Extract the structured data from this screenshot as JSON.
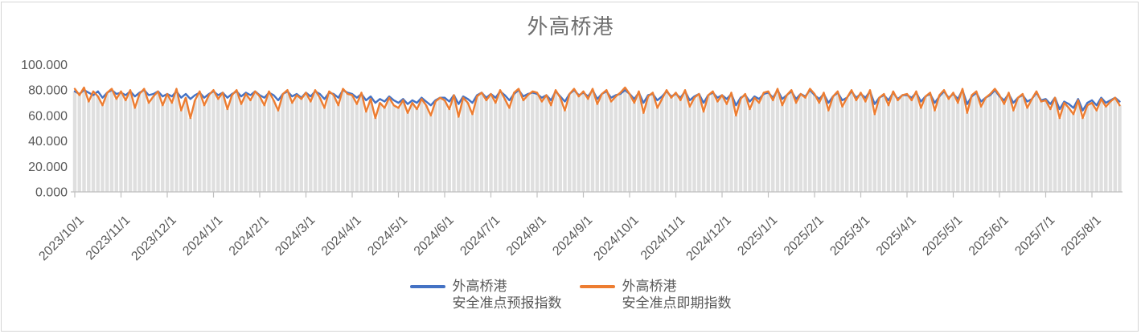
{
  "chart_data": {
    "type": "line",
    "title": "外高桥港",
    "xlabel": "",
    "ylabel": "",
    "ylim": [
      0,
      100
    ],
    "grid": false,
    "legend_position": "bottom",
    "bar_color": "#dfdfdf",
    "axis_color": "#bfbfbf",
    "text_color": "#595959",
    "y_ticks": [
      {
        "value": 0,
        "label": "0.000"
      },
      {
        "value": 20,
        "label": "20.000"
      },
      {
        "value": 40,
        "label": "40.000"
      },
      {
        "value": 60,
        "label": "60.000"
      },
      {
        "value": 80,
        "label": "80.000"
      },
      {
        "value": 100,
        "label": "100.000"
      }
    ],
    "x_ticks": [
      "2023/10/1",
      "2023/11/1",
      "2023/12/1",
      "2024/1/1",
      "2024/2/1",
      "2024/3/1",
      "2024/4/1",
      "2024/5/1",
      "2024/6/1",
      "2024/7/1",
      "2024/8/1",
      "2024/9/1",
      "2024/10/1",
      "2024/11/1",
      "2024/12/1",
      "2025/1/1",
      "2025/2/1",
      "2025/3/1",
      "2025/4/1",
      "2025/5/1",
      "2025/6/1",
      "2025/7/1",
      "2025/8/1"
    ],
    "points_per_month": 10,
    "series": [
      {
        "name": "外高桥港 安全准点预报指数",
        "color": "#4472C4",
        "values": [
          79,
          77,
          80,
          78,
          76,
          79,
          74,
          78,
          80,
          77,
          78,
          76,
          79,
          75,
          78,
          80,
          76,
          77,
          79,
          75,
          77,
          75,
          79,
          74,
          77,
          73,
          76,
          78,
          74,
          77,
          79,
          76,
          78,
          74,
          77,
          79,
          75,
          78,
          76,
          79,
          76,
          74,
          78,
          76,
          72,
          77,
          79,
          75,
          77,
          74,
          78,
          75,
          79,
          77,
          73,
          78,
          77,
          74,
          80,
          78,
          77,
          74,
          77,
          72,
          75,
          70,
          73,
          71,
          75,
          72,
          70,
          73,
          69,
          72,
          70,
          74,
          71,
          68,
          72,
          74,
          74,
          71,
          76,
          69,
          75,
          73,
          70,
          76,
          78,
          74,
          77,
          74,
          79,
          76,
          72,
          77,
          80,
          75,
          77,
          78,
          77,
          74,
          76,
          72,
          79,
          75,
          71,
          77,
          80,
          76,
          78,
          75,
          80,
          73,
          77,
          79,
          74,
          76,
          77,
          80,
          77,
          73,
          78,
          70,
          76,
          77,
          72,
          75,
          79,
          75,
          77,
          74,
          79,
          72,
          75,
          77,
          70,
          76,
          78,
          74,
          76,
          73,
          77,
          68,
          74,
          76,
          71,
          75,
          73,
          77,
          78,
          74,
          80,
          73,
          76,
          79,
          73,
          77,
          75,
          80,
          76,
          73,
          77,
          70,
          75,
          78,
          72,
          74,
          79,
          74,
          77,
          74,
          79,
          69,
          74,
          76,
          72,
          78,
          73,
          76,
          76,
          74,
          78,
          71,
          75,
          77,
          70,
          75,
          79,
          74,
          77,
          73,
          80,
          69,
          75,
          78,
          71,
          74,
          76,
          80,
          75,
          72,
          77,
          70,
          74,
          76,
          71,
          73,
          78,
          72,
          73,
          69,
          74,
          65,
          71,
          69,
          66,
          73,
          64,
          70,
          72,
          68,
          74,
          70,
          72,
          74,
          71
        ]
      },
      {
        "name": "外高桥港 安全准点即期指数",
        "color": "#ED7D31",
        "values": [
          81,
          76,
          82,
          71,
          79,
          75,
          68,
          78,
          81,
          73,
          79,
          72,
          80,
          66,
          77,
          81,
          70,
          75,
          79,
          68,
          77,
          70,
          81,
          64,
          74,
          58,
          72,
          79,
          68,
          76,
          80,
          73,
          78,
          65,
          76,
          80,
          69,
          77,
          72,
          79,
          75,
          68,
          79,
          72,
          64,
          77,
          80,
          70,
          76,
          73,
          78,
          71,
          80,
          74,
          66,
          79,
          76,
          68,
          81,
          77,
          76,
          69,
          78,
          63,
          73,
          58,
          70,
          66,
          74,
          68,
          66,
          72,
          62,
          70,
          65,
          73,
          68,
          60,
          71,
          74,
          72,
          65,
          76,
          59,
          74,
          70,
          61,
          75,
          78,
          72,
          77,
          70,
          80,
          73,
          66,
          78,
          81,
          72,
          76,
          79,
          78,
          71,
          76,
          68,
          80,
          74,
          64,
          77,
          81,
          75,
          79,
          73,
          81,
          69,
          77,
          80,
          71,
          75,
          78,
          82,
          77,
          70,
          79,
          62,
          75,
          78,
          66,
          73,
          80,
          74,
          78,
          72,
          80,
          67,
          74,
          77,
          63,
          76,
          79,
          71,
          76,
          69,
          78,
          60,
          73,
          77,
          65,
          74,
          70,
          78,
          79,
          72,
          81,
          68,
          76,
          80,
          70,
          77,
          74,
          81,
          77,
          70,
          78,
          64,
          75,
          79,
          67,
          74,
          80,
          72,
          78,
          71,
          80,
          61,
          74,
          77,
          68,
          79,
          72,
          76,
          77,
          72,
          79,
          66,
          75,
          78,
          64,
          76,
          80,
          73,
          78,
          70,
          81,
          62,
          76,
          79,
          67,
          74,
          77,
          81,
          76,
          69,
          78,
          64,
          74,
          77,
          66,
          73,
          79,
          71,
          72,
          65,
          74,
          58,
          70,
          66,
          61,
          72,
          58,
          68,
          70,
          64,
          73,
          67,
          71,
          74,
          68
        ]
      }
    ]
  },
  "legend": {
    "items": [
      {
        "line1": "外高桥港",
        "line2": "安全准点预报指数"
      },
      {
        "line1": "外高桥港",
        "line2": "安全准点即期指数"
      }
    ]
  }
}
